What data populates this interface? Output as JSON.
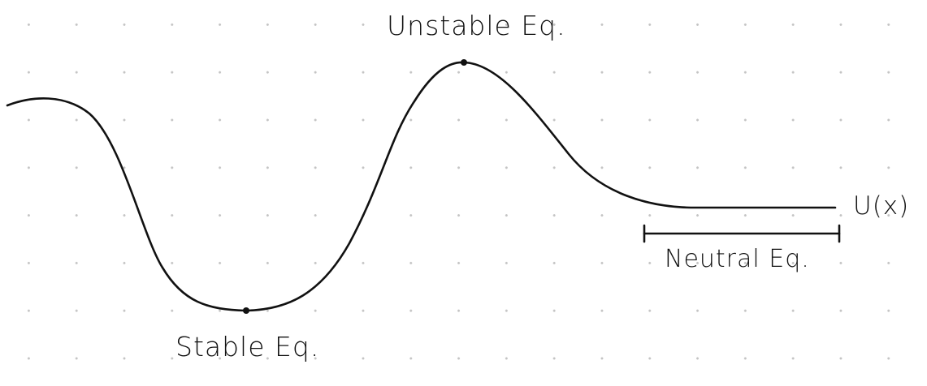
{
  "diagram": {
    "labels": {
      "unstable": "Unstable Eq.",
      "stable": "Stable Eq.",
      "neutral": "Neutral Eq.",
      "function": "U(x)"
    },
    "colors": {
      "ink": "#111111",
      "grid_dots": "#c4c4c4",
      "background": "#ffffff"
    }
  }
}
